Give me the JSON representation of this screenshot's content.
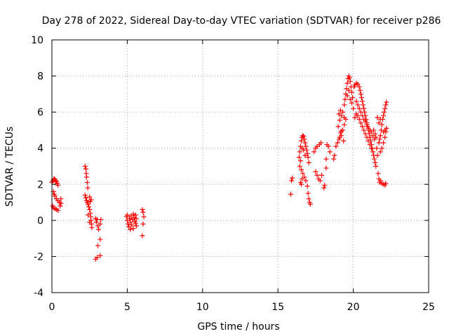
{
  "chart_data": {
    "type": "scatter",
    "title": "Day 278 of 2022, Sidereal Day-to-day VTEC variation (SDTVAR) for receiver p286",
    "xlabel": "GPS time / hours",
    "ylabel": "SDTVAR / TECUs",
    "xlim": [
      0,
      25
    ],
    "ylim": [
      -4,
      10
    ],
    "xticks": [
      0,
      5,
      10,
      15,
      20,
      25
    ],
    "yticks": [
      -4,
      -2,
      0,
      2,
      4,
      6,
      8,
      10
    ],
    "xtick_labels": [
      "0",
      "5",
      "10",
      "15",
      "20",
      "25"
    ],
    "ytick_labels": [
      "-4",
      "-2",
      "0",
      "2",
      "4",
      "6",
      "8",
      "10"
    ],
    "grid": true,
    "marker": "+",
    "color": "#ff0000",
    "series": [
      {
        "name": "SDTVAR",
        "points": [
          [
            0.0,
            2.1
          ],
          [
            0.05,
            2.18
          ],
          [
            0.1,
            2.25
          ],
          [
            0.15,
            2.3
          ],
          [
            0.2,
            2.28
          ],
          [
            0.25,
            2.2
          ],
          [
            0.3,
            2.15
          ],
          [
            0.35,
            2.05
          ],
          [
            0.4,
            1.95
          ],
          [
            0.1,
            1.6
          ],
          [
            0.15,
            1.45
          ],
          [
            0.2,
            1.35
          ],
          [
            0.3,
            1.2
          ],
          [
            0.4,
            1.1
          ],
          [
            0.5,
            1.0
          ],
          [
            0.05,
            0.8
          ],
          [
            0.1,
            0.7
          ],
          [
            0.2,
            0.65
          ],
          [
            0.3,
            0.6
          ],
          [
            0.4,
            0.55
          ],
          [
            0.55,
            0.8
          ],
          [
            0.6,
            0.95
          ],
          [
            0.6,
            1.2
          ],
          [
            2.2,
            3.0
          ],
          [
            2.25,
            2.85
          ],
          [
            2.28,
            2.6
          ],
          [
            2.3,
            2.4
          ],
          [
            2.35,
            2.1
          ],
          [
            2.38,
            1.8
          ],
          [
            2.2,
            1.4
          ],
          [
            2.25,
            1.25
          ],
          [
            2.3,
            1.1
          ],
          [
            2.35,
            1.0
          ],
          [
            2.4,
            0.9
          ],
          [
            2.45,
            0.75
          ],
          [
            2.5,
            0.6
          ],
          [
            2.55,
            0.4
          ],
          [
            2.58,
            0.2
          ],
          [
            2.6,
            0.0
          ],
          [
            2.62,
            -0.2
          ],
          [
            2.65,
            -0.4
          ],
          [
            2.5,
            1.3
          ],
          [
            2.6,
            1.15
          ],
          [
            2.55,
            1.05
          ],
          [
            2.4,
            0.3
          ],
          [
            2.5,
            -0.1
          ],
          [
            2.9,
            0.1
          ],
          [
            3.0,
            0.05
          ],
          [
            2.95,
            -0.1
          ],
          [
            3.05,
            -0.3
          ],
          [
            3.1,
            -0.5
          ],
          [
            3.2,
            -0.2
          ],
          [
            3.25,
            0.05
          ],
          [
            3.05,
            -1.4
          ],
          [
            3.2,
            -1.05
          ],
          [
            2.9,
            -2.15
          ],
          [
            3.0,
            -2.05
          ],
          [
            3.2,
            -1.95
          ],
          [
            4.95,
            0.2
          ],
          [
            5.0,
            0.0
          ],
          [
            5.05,
            -0.2
          ],
          [
            5.1,
            -0.35
          ],
          [
            5.15,
            0.1
          ],
          [
            5.2,
            -0.1
          ],
          [
            5.25,
            0.25
          ],
          [
            5.3,
            -0.25
          ],
          [
            5.35,
            0.05
          ],
          [
            5.4,
            -0.45
          ],
          [
            5.45,
            0.15
          ],
          [
            5.5,
            -0.05
          ],
          [
            5.55,
            0.3
          ],
          [
            5.6,
            -0.3
          ],
          [
            5.0,
            0.3
          ],
          [
            5.2,
            -0.5
          ],
          [
            5.4,
            0.35
          ],
          [
            5.55,
            -0.15
          ],
          [
            5.6,
            0.1
          ],
          [
            6.0,
            0.6
          ],
          [
            6.05,
            0.45
          ],
          [
            6.1,
            0.2
          ],
          [
            6.05,
            -0.2
          ],
          [
            6.0,
            -0.85
          ],
          [
            15.85,
            1.45
          ],
          [
            15.9,
            2.2
          ],
          [
            15.95,
            2.35
          ],
          [
            16.4,
            3.5
          ],
          [
            16.45,
            3.8
          ],
          [
            16.5,
            4.1
          ],
          [
            16.55,
            4.4
          ],
          [
            16.6,
            4.6
          ],
          [
            16.65,
            4.7
          ],
          [
            16.7,
            4.65
          ],
          [
            16.75,
            4.5
          ],
          [
            16.8,
            4.3
          ],
          [
            16.85,
            4.1
          ],
          [
            16.9,
            3.9
          ],
          [
            16.95,
            3.7
          ],
          [
            17.0,
            3.5
          ],
          [
            17.05,
            3.2
          ],
          [
            16.45,
            3.0
          ],
          [
            16.55,
            2.8
          ],
          [
            16.65,
            2.6
          ],
          [
            16.75,
            2.4
          ],
          [
            16.85,
            2.2
          ],
          [
            16.95,
            1.9
          ],
          [
            17.0,
            1.5
          ],
          [
            17.05,
            1.2
          ],
          [
            17.1,
            1.0
          ],
          [
            17.15,
            0.9
          ],
          [
            16.5,
            2.1
          ],
          [
            16.55,
            2.0
          ],
          [
            16.6,
            2.3
          ],
          [
            16.6,
            4.0
          ],
          [
            16.7,
            3.9
          ],
          [
            16.8,
            3.6
          ],
          [
            16.5,
            3.3
          ],
          [
            17.4,
            3.8
          ],
          [
            17.5,
            4.0
          ],
          [
            17.6,
            4.1
          ],
          [
            17.5,
            2.7
          ],
          [
            17.6,
            2.5
          ],
          [
            17.7,
            2.3
          ],
          [
            17.8,
            2.2
          ],
          [
            17.9,
            2.5
          ],
          [
            17.75,
            4.2
          ],
          [
            17.85,
            4.3
          ],
          [
            18.05,
            1.8
          ],
          [
            18.1,
            1.95
          ],
          [
            18.2,
            2.9
          ],
          [
            18.2,
            3.4
          ],
          [
            18.25,
            4.2
          ],
          [
            18.35,
            4.1
          ],
          [
            18.45,
            3.8
          ],
          [
            18.7,
            3.4
          ],
          [
            18.75,
            3.6
          ],
          [
            18.85,
            4.1
          ],
          [
            18.95,
            4.3
          ],
          [
            19.05,
            4.5
          ],
          [
            19.1,
            4.6
          ],
          [
            19.15,
            4.85
          ],
          [
            19.2,
            4.95
          ],
          [
            19.0,
            5.2
          ],
          [
            19.1,
            5.55
          ],
          [
            19.2,
            5.8
          ],
          [
            19.3,
            6.0
          ],
          [
            19.15,
            6.1
          ],
          [
            19.05,
            5.9
          ],
          [
            19.4,
            5.7
          ],
          [
            19.4,
            6.4
          ],
          [
            19.45,
            6.7
          ],
          [
            19.5,
            7.0
          ],
          [
            19.55,
            7.3
          ],
          [
            19.6,
            7.6
          ],
          [
            19.65,
            7.85
          ],
          [
            19.7,
            8.0
          ],
          [
            19.75,
            7.9
          ],
          [
            19.8,
            7.7
          ],
          [
            19.85,
            7.4
          ],
          [
            19.9,
            7.1
          ],
          [
            19.95,
            6.8
          ],
          [
            19.6,
            6.9
          ],
          [
            19.7,
            7.2
          ],
          [
            19.8,
            6.7
          ],
          [
            19.9,
            6.5
          ],
          [
            20.0,
            6.2
          ],
          [
            19.5,
            5.6
          ],
          [
            19.4,
            5.3
          ],
          [
            19.3,
            5.0
          ],
          [
            19.2,
            4.7
          ],
          [
            19.35,
            4.4
          ],
          [
            20.05,
            7.4
          ],
          [
            20.1,
            7.5
          ],
          [
            20.2,
            7.6
          ],
          [
            20.3,
            7.55
          ],
          [
            20.4,
            7.4
          ],
          [
            20.45,
            7.2
          ],
          [
            20.5,
            7.0
          ],
          [
            20.55,
            6.8
          ],
          [
            20.6,
            6.6
          ],
          [
            20.65,
            6.4
          ],
          [
            20.7,
            6.2
          ],
          [
            20.75,
            6.0
          ],
          [
            20.8,
            5.8
          ],
          [
            20.85,
            5.6
          ],
          [
            20.9,
            5.4
          ],
          [
            20.95,
            5.2
          ],
          [
            21.0,
            5.0
          ],
          [
            21.05,
            4.8
          ],
          [
            21.1,
            4.6
          ],
          [
            21.15,
            4.4
          ],
          [
            21.2,
            4.2
          ],
          [
            21.25,
            4.0
          ],
          [
            21.3,
            3.8
          ],
          [
            21.35,
            3.6
          ],
          [
            21.4,
            3.4
          ],
          [
            21.45,
            3.2
          ],
          [
            21.5,
            3.0
          ],
          [
            20.2,
            6.6
          ],
          [
            20.3,
            6.4
          ],
          [
            20.4,
            6.2
          ],
          [
            20.5,
            6.0
          ],
          [
            20.6,
            5.8
          ],
          [
            20.7,
            5.6
          ],
          [
            20.8,
            5.5
          ],
          [
            20.9,
            5.3
          ],
          [
            21.0,
            5.1
          ],
          [
            21.1,
            5.0
          ],
          [
            21.2,
            4.9
          ],
          [
            21.3,
            4.7
          ],
          [
            21.4,
            4.5
          ],
          [
            20.3,
            5.8
          ],
          [
            20.4,
            5.6
          ],
          [
            20.5,
            5.4
          ],
          [
            20.6,
            5.2
          ],
          [
            20.7,
            5.0
          ],
          [
            20.8,
            4.8
          ],
          [
            20.9,
            4.6
          ],
          [
            21.0,
            4.4
          ],
          [
            21.1,
            4.2
          ],
          [
            21.2,
            4.0
          ],
          [
            20.1,
            5.7
          ],
          [
            20.2,
            5.9
          ],
          [
            21.35,
            5.0
          ],
          [
            21.45,
            4.8
          ],
          [
            21.5,
            4.6
          ],
          [
            21.55,
            4.0
          ],
          [
            21.6,
            3.6
          ],
          [
            21.65,
            2.6
          ],
          [
            21.7,
            2.3
          ],
          [
            21.75,
            2.1
          ],
          [
            21.8,
            2.2
          ],
          [
            21.9,
            2.05
          ],
          [
            22.0,
            2.0
          ],
          [
            22.1,
            1.95
          ],
          [
            22.15,
            2.05
          ],
          [
            21.7,
            4.3
          ],
          [
            21.75,
            4.5
          ],
          [
            21.8,
            4.7
          ],
          [
            21.85,
            5.0
          ],
          [
            21.9,
            5.3
          ],
          [
            21.95,
            5.6
          ],
          [
            22.0,
            5.8
          ],
          [
            22.05,
            6.0
          ],
          [
            22.1,
            6.2
          ],
          [
            22.15,
            6.4
          ],
          [
            22.2,
            6.55
          ],
          [
            21.8,
            3.8
          ],
          [
            21.9,
            4.0
          ],
          [
            22.0,
            4.3
          ],
          [
            22.1,
            4.6
          ],
          [
            22.15,
            4.9
          ],
          [
            22.2,
            5.1
          ],
          [
            21.6,
            5.7
          ],
          [
            21.7,
            5.4
          ],
          [
            21.8,
            5.6
          ],
          [
            22.0,
            4.9
          ],
          [
            22.1,
            5.0
          ]
        ]
      }
    ]
  }
}
